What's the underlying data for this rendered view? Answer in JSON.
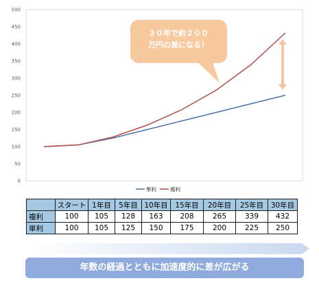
{
  "chart_data": {
    "type": "line",
    "categories": [
      "スタート",
      "1年目",
      "5年目",
      "10年目",
      "15年目",
      "20年目",
      "25年目",
      "30年目"
    ],
    "series": [
      {
        "name": "単利",
        "values": [
          100,
          105,
          125,
          150,
          175,
          200,
          225,
          250
        ],
        "color": "#4f73a8"
      },
      {
        "name": "複利",
        "values": [
          100,
          105,
          128,
          163,
          208,
          265,
          339,
          432
        ],
        "color": "#b04e4b"
      }
    ],
    "ylim": [
      0,
      500
    ],
    "yticks": [
      "0",
      "50",
      "100",
      "150",
      "200",
      "250",
      "300",
      "350",
      "400",
      "450",
      "500"
    ],
    "grid": false,
    "legend": "bottom",
    "legend_labels": [
      "単利",
      "複利"
    ]
  },
  "callout": {
    "line1": "３０年で約２００",
    "line2": "万円の差になる！",
    "color": "#f8c99f"
  },
  "gap_arrow": {
    "color": "#f6c6a2",
    "from_value": 250,
    "to_value": 432
  },
  "table": {
    "headers": [
      "スタート",
      "1年目",
      "5年目",
      "10年目",
      "15年目",
      "20年目",
      "25年目",
      "30年目"
    ],
    "rows": [
      {
        "label": "複利",
        "cells": [
          "100",
          "105",
          "128",
          "163",
          "208",
          "265",
          "339",
          "432"
        ]
      },
      {
        "label": "単利",
        "cells": [
          "100",
          "105",
          "125",
          "150",
          "175",
          "200",
          "225",
          "250"
        ]
      }
    ],
    "header_color": "#a6c9e3"
  },
  "banner": {
    "text": "年数の経過とともに加速度的に差が広がる",
    "color": "#8faadc"
  }
}
